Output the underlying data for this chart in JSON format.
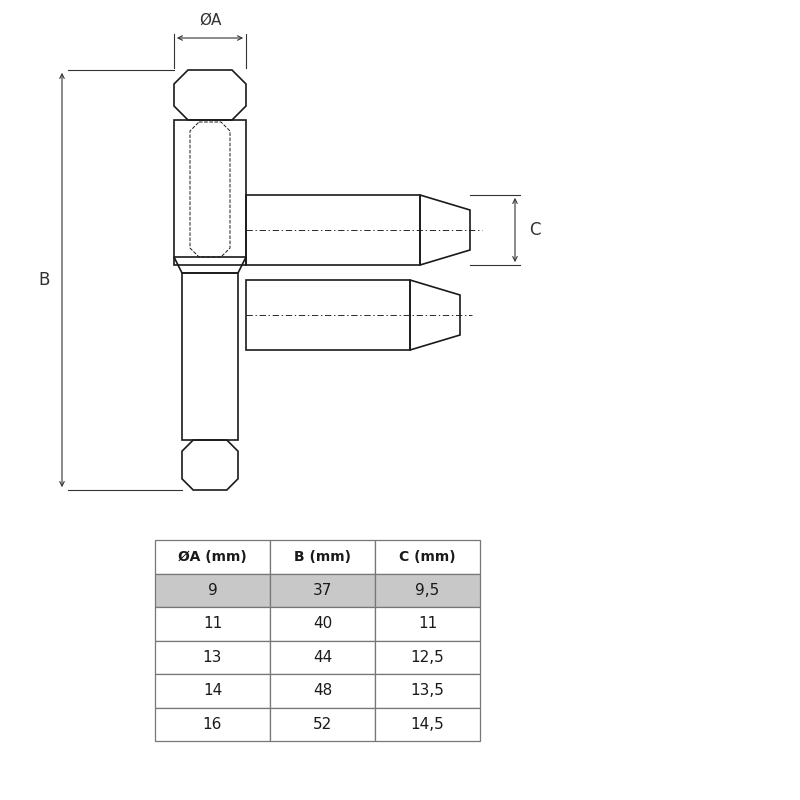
{
  "bg_color": "#ffffff",
  "line_color": "#1a1a1a",
  "dim_color": "#333333",
  "table_header_bg": "#ffffff",
  "table_row1_bg": "#cccccc",
  "table_row_bg": "#ffffff",
  "table_border": "#777777",
  "table_headers": [
    "ØA (mm)",
    "B (mm)",
    "C (mm)"
  ],
  "table_data": [
    [
      "9",
      "37",
      "9,5"
    ],
    [
      "11",
      "40",
      "11"
    ],
    [
      "13",
      "44",
      "12,5"
    ],
    [
      "14",
      "48",
      "13,5"
    ],
    [
      "16",
      "52",
      "14,5"
    ]
  ],
  "highlight_row": 0,
  "highlight_color": "#c8c8c8"
}
